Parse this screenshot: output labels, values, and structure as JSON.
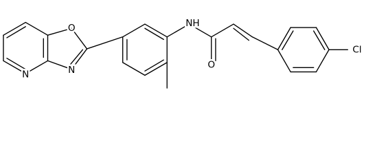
{
  "atoms": [
    {
      "label": "O"
    },
    {
      "label": "N"
    },
    {
      "label": "N"
    },
    {
      "label": "NH"
    },
    {
      "label": "O"
    },
    {
      "label": "Cl"
    }
  ]
}
